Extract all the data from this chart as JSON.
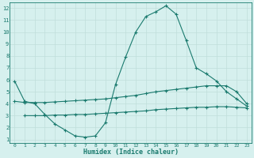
{
  "line1_x": [
    0,
    1,
    2,
    3,
    4,
    5,
    6,
    7,
    8,
    9,
    10,
    11,
    12,
    13,
    14,
    15,
    16,
    17,
    18,
    19,
    20,
    21,
    22,
    23
  ],
  "line1_y": [
    5.9,
    4.2,
    4.0,
    3.1,
    2.3,
    1.8,
    1.3,
    1.2,
    1.3,
    2.4,
    5.6,
    7.9,
    10.0,
    11.3,
    11.7,
    12.2,
    11.5,
    9.3,
    7.0,
    6.5,
    5.9,
    5.0,
    4.4,
    3.8
  ],
  "line2_x": [
    0,
    1,
    2,
    3,
    4,
    5,
    6,
    7,
    8,
    9,
    10,
    11,
    12,
    13,
    14,
    15,
    16,
    17,
    18,
    19,
    20,
    21,
    22,
    23
  ],
  "line2_y": [
    4.2,
    4.1,
    4.1,
    4.1,
    4.15,
    4.2,
    4.25,
    4.3,
    4.35,
    4.4,
    4.5,
    4.6,
    4.7,
    4.85,
    5.0,
    5.1,
    5.2,
    5.3,
    5.4,
    5.5,
    5.5,
    5.5,
    5.0,
    4.0
  ],
  "line3_x": [
    1,
    2,
    3,
    4,
    5,
    6,
    7,
    8,
    9,
    10,
    11,
    12,
    13,
    14,
    15,
    16,
    17,
    18,
    19,
    20,
    21,
    22,
    23
  ],
  "line3_y": [
    3.0,
    3.0,
    3.0,
    3.05,
    3.05,
    3.1,
    3.1,
    3.15,
    3.2,
    3.25,
    3.3,
    3.35,
    3.4,
    3.5,
    3.55,
    3.6,
    3.65,
    3.7,
    3.7,
    3.75,
    3.75,
    3.7,
    3.65
  ],
  "line_color": "#1a7a6e",
  "bg_color": "#d6f0ee",
  "grid_color": "#c0deda",
  "xlabel": "Humidex (Indice chaleur)",
  "xlim": [
    -0.5,
    23.5
  ],
  "ylim": [
    0.7,
    12.5
  ],
  "yticks": [
    1,
    2,
    3,
    4,
    5,
    6,
    7,
    8,
    9,
    10,
    11,
    12
  ],
  "xticks": [
    0,
    1,
    2,
    3,
    4,
    5,
    6,
    7,
    8,
    9,
    10,
    11,
    12,
    13,
    14,
    15,
    16,
    17,
    18,
    19,
    20,
    21,
    22,
    23
  ],
  "marker": "+",
  "markersize": 3.0,
  "linewidth": 0.8,
  "xlabel_fontsize": 6.0,
  "tick_fontsize": 4.5,
  "ytick_fontsize": 5.0
}
